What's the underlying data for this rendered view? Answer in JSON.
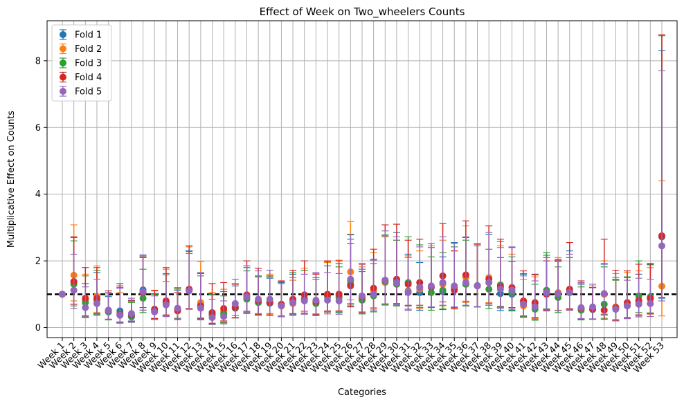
{
  "chart_data": {
    "type": "errorbar-scatter",
    "title": "Effect of Week on Two_wheelers Counts",
    "xlabel": "Categories",
    "ylabel": "Multiplicative Effect on Counts",
    "ylim": [
      -0.3,
      9.2
    ],
    "yticks": [
      0,
      2,
      4,
      6,
      8
    ],
    "grid": true,
    "legend_position": "top-left",
    "reference_line": {
      "y": 1.0,
      "style": "dashed",
      "color": "#000000"
    },
    "categories": [
      "Week 1",
      "Week 2",
      "Week 3",
      "Week 4",
      "Week 5",
      "Week 6",
      "Week 7",
      "Week 8",
      "Week 9",
      "Week 10",
      "Week 11",
      "Week 12",
      "Week 13",
      "Week 14",
      "Week 15",
      "Week 16",
      "Week 17",
      "Week 18",
      "Week 19",
      "Week 20",
      "Week 21",
      "Week 22",
      "Week 23",
      "Week 24",
      "Week 25",
      "Week 26",
      "Week 27",
      "Week 28",
      "Week 29",
      "Week 30",
      "Week 31",
      "Week 32",
      "Week 33",
      "Week 34",
      "Week 35",
      "Week 36",
      "Week 37",
      "Week 38",
      "Week 39",
      "Week 40",
      "Week 41",
      "Week 42",
      "Week 43",
      "Week 44",
      "Week 45",
      "Week 46",
      "Week 47",
      "Week 48",
      "Week 49",
      "Week 50",
      "Week 51",
      "Week 52",
      "Week 53"
    ],
    "series": [
      {
        "name": "Fold 1",
        "color": "#1f77b4",
        "values": [
          1.0,
          1.38,
          0.82,
          0.83,
          0.47,
          0.5,
          0.32,
          1.13,
          0.52,
          0.75,
          0.55,
          1.14,
          0.7,
          0.4,
          0.46,
          0.58,
          0.9,
          0.77,
          0.73,
          0.66,
          0.8,
          0.85,
          0.75,
          0.92,
          0.95,
          1.3,
          0.85,
          1.0,
          1.38,
          1.4,
          1.1,
          1.05,
          1.2,
          1.08,
          1.22,
          1.3,
          1.26,
          1.35,
          1.02,
          1.0,
          0.78,
          0.72,
          1.08,
          1.02,
          1.08,
          0.55,
          0.54,
          1.0,
          0.57,
          0.68,
          0.78,
          0.9,
          2.72
        ],
        "lower": [
          1.0,
          0.7,
          0.32,
          0.4,
          0.24,
          0.17,
          0.16,
          0.6,
          0.26,
          0.35,
          0.27,
          0.57,
          0.27,
          0.12,
          0.15,
          0.29,
          0.45,
          0.38,
          0.37,
          0.33,
          0.4,
          0.43,
          0.37,
          0.46,
          0.47,
          0.65,
          0.42,
          0.5,
          0.68,
          0.7,
          0.55,
          0.52,
          0.6,
          0.54,
          0.61,
          0.65,
          0.63,
          0.67,
          0.51,
          0.5,
          0.33,
          0.29,
          0.54,
          0.51,
          0.54,
          0.25,
          0.26,
          0.4,
          0.22,
          0.28,
          0.38,
          0.43,
          0.88
        ],
        "upper": [
          1.0,
          2.7,
          1.32,
          1.65,
          0.93,
          1.32,
          0.8,
          2.15,
          1.02,
          1.58,
          1.12,
          2.3,
          1.65,
          0.98,
          1.08,
          1.25,
          1.8,
          1.55,
          1.48,
          1.35,
          1.6,
          1.72,
          1.5,
          1.85,
          1.92,
          2.65,
          1.75,
          2.05,
          2.75,
          2.85,
          2.2,
          1.95,
          2.4,
          2.12,
          2.55,
          2.7,
          2.45,
          2.8,
          2.1,
          1.98,
          1.6,
          1.58,
          2.17,
          1.98,
          2.3,
          1.3,
          1.2,
          1.9,
          1.45,
          1.5,
          1.6,
          1.9,
          8.3
        ]
      },
      {
        "name": "Fold 2",
        "color": "#ff7f0e",
        "values": [
          1.0,
          1.57,
          0.85,
          0.94,
          0.5,
          0.37,
          0.35,
          1.05,
          0.55,
          0.77,
          0.55,
          1.12,
          0.75,
          0.35,
          0.5,
          0.62,
          0.92,
          0.75,
          0.78,
          0.65,
          0.72,
          0.88,
          0.8,
          0.95,
          1.0,
          1.67,
          0.88,
          1.1,
          1.35,
          1.3,
          1.08,
          1.15,
          1.22,
          1.3,
          1.15,
          1.5,
          1.25,
          1.5,
          1.22,
          1.1,
          0.65,
          0.65,
          1.05,
          1.05,
          1.05,
          0.55,
          0.55,
          1.0,
          0.62,
          0.72,
          0.72,
          0.85,
          1.24
        ],
        "lower": [
          1.0,
          0.8,
          0.35,
          0.45,
          0.25,
          0.13,
          0.17,
          0.52,
          0.28,
          0.36,
          0.27,
          0.55,
          0.3,
          0.11,
          0.17,
          0.3,
          0.46,
          0.37,
          0.39,
          0.32,
          0.36,
          0.44,
          0.4,
          0.47,
          0.5,
          0.83,
          0.44,
          0.55,
          0.67,
          0.65,
          0.54,
          0.57,
          0.61,
          0.65,
          0.57,
          0.75,
          0.62,
          0.75,
          0.61,
          0.55,
          0.3,
          0.27,
          0.52,
          0.52,
          0.52,
          0.24,
          0.25,
          0.38,
          0.24,
          0.3,
          0.35,
          0.4,
          0.35
        ],
        "upper": [
          1.0,
          3.08,
          1.6,
          1.85,
          1.03,
          1.05,
          0.78,
          2.12,
          1.1,
          1.75,
          1.15,
          2.42,
          1.98,
          1.05,
          1.15,
          1.32,
          1.85,
          1.52,
          1.6,
          1.32,
          1.42,
          1.78,
          1.62,
          1.95,
          2.02,
          3.18,
          1.82,
          2.25,
          2.72,
          2.62,
          2.15,
          2.3,
          2.45,
          2.62,
          2.3,
          3.05,
          2.5,
          3.05,
          2.45,
          2.2,
          1.45,
          1.52,
          2.1,
          2.1,
          2.1,
          1.32,
          1.25,
          2.0,
          1.62,
          1.65,
          1.7,
          1.8,
          4.4
        ]
      },
      {
        "name": "Fold 3",
        "color": "#2ca02c",
        "values": [
          1.0,
          1.3,
          0.75,
          0.83,
          0.47,
          0.42,
          0.35,
          0.88,
          0.5,
          0.72,
          0.55,
          1.12,
          0.62,
          0.37,
          0.4,
          0.62,
          0.85,
          0.75,
          0.75,
          0.68,
          0.82,
          0.85,
          0.72,
          0.98,
          0.9,
          1.4,
          0.82,
          0.95,
          1.38,
          1.3,
          1.35,
          1.22,
          1.05,
          1.12,
          1.2,
          1.3,
          1.25,
          1.15,
          1.28,
          1.05,
          0.72,
          0.55,
          1.12,
          0.9,
          1.05,
          0.52,
          0.55,
          0.7,
          0.55,
          0.65,
          0.95,
          0.92,
          2.75
        ],
        "lower": [
          1.0,
          0.65,
          0.3,
          0.4,
          0.23,
          0.15,
          0.17,
          0.45,
          0.25,
          0.34,
          0.27,
          0.55,
          0.25,
          0.11,
          0.14,
          0.3,
          0.42,
          0.37,
          0.37,
          0.34,
          0.41,
          0.42,
          0.36,
          0.49,
          0.45,
          0.7,
          0.41,
          0.47,
          0.69,
          0.65,
          0.67,
          0.61,
          0.52,
          0.56,
          0.6,
          0.65,
          0.62,
          0.57,
          0.64,
          0.52,
          0.32,
          0.22,
          0.56,
          0.45,
          0.52,
          0.23,
          0.25,
          0.28,
          0.21,
          0.27,
          0.45,
          0.44,
          0.9
        ],
        "upper": [
          1.0,
          2.6,
          1.55,
          1.72,
          0.97,
          1.2,
          0.75,
          1.75,
          1.0,
          1.62,
          1.18,
          2.28,
          1.55,
          1.0,
          0.95,
          1.3,
          1.7,
          1.52,
          1.52,
          1.38,
          1.65,
          1.72,
          1.45,
          1.98,
          1.82,
          2.8,
          1.68,
          1.92,
          2.78,
          2.62,
          2.72,
          2.48,
          2.12,
          2.25,
          2.42,
          2.62,
          2.52,
          2.35,
          2.58,
          2.12,
          1.62,
          1.3,
          2.25,
          1.82,
          2.1,
          1.22,
          1.2,
          1.82,
          1.42,
          1.52,
          2.0,
          1.88,
          8.75
        ]
      },
      {
        "name": "Fold 4",
        "color": "#d62728",
        "values": [
          1.0,
          1.38,
          0.88,
          0.88,
          0.52,
          0.4,
          0.38,
          1.05,
          0.55,
          0.8,
          0.5,
          1.15,
          0.65,
          0.45,
          0.57,
          0.6,
          0.98,
          0.8,
          0.75,
          0.7,
          0.85,
          0.98,
          0.78,
          1.0,
          1.0,
          1.25,
          0.92,
          1.18,
          1.42,
          1.45,
          1.3,
          1.35,
          1.22,
          1.55,
          1.12,
          1.58,
          1.25,
          1.45,
          1.22,
          1.2,
          0.8,
          0.75,
          1.0,
          1.02,
          1.15,
          0.58,
          0.55,
          0.52,
          0.6,
          0.75,
          0.82,
          0.88,
          2.75
        ],
        "lower": [
          1.0,
          0.7,
          0.35,
          0.42,
          0.25,
          0.14,
          0.18,
          0.52,
          0.27,
          0.38,
          0.24,
          0.57,
          0.26,
          0.13,
          0.2,
          0.29,
          0.49,
          0.4,
          0.37,
          0.35,
          0.42,
          0.49,
          0.39,
          0.5,
          0.5,
          0.62,
          0.46,
          0.59,
          0.71,
          0.72,
          0.65,
          0.67,
          0.61,
          0.77,
          0.56,
          0.79,
          0.62,
          0.72,
          0.61,
          0.6,
          0.35,
          0.3,
          0.5,
          0.51,
          0.57,
          0.26,
          0.25,
          0.25,
          0.22,
          0.3,
          0.38,
          0.42,
          0.9
        ],
        "upper": [
          1.0,
          2.72,
          1.8,
          1.8,
          1.1,
          1.25,
          0.82,
          2.1,
          1.12,
          1.8,
          1.05,
          2.45,
          1.62,
          1.32,
          1.35,
          1.3,
          2.0,
          1.78,
          1.55,
          1.4,
          1.72,
          2.0,
          1.6,
          2.0,
          2.0,
          2.52,
          1.9,
          2.35,
          3.08,
          3.1,
          2.62,
          2.65,
          2.52,
          3.12,
          2.3,
          3.2,
          2.5,
          3.05,
          2.65,
          2.4,
          1.7,
          1.6,
          2.0,
          2.02,
          2.55,
          1.4,
          1.2,
          2.65,
          1.72,
          1.7,
          1.9,
          1.92,
          8.78
        ]
      },
      {
        "name": "Fold 5",
        "color": "#9467bd",
        "values": [
          1.0,
          1.12,
          0.6,
          0.72,
          0.52,
          0.37,
          0.42,
          1.08,
          0.47,
          0.68,
          0.58,
          1.1,
          0.58,
          0.3,
          0.33,
          0.72,
          0.92,
          0.85,
          0.85,
          0.65,
          0.75,
          0.8,
          0.82,
          0.82,
          0.8,
          1.45,
          0.95,
          1.0,
          1.42,
          1.35,
          1.05,
          1.2,
          1.25,
          1.35,
          1.25,
          1.35,
          1.25,
          1.35,
          1.15,
          1.12,
          0.7,
          0.62,
          1.05,
          1.02,
          1.05,
          0.6,
          0.62,
          1.02,
          0.55,
          0.65,
          0.7,
          0.72,
          2.45
        ],
        "lower": [
          1.0,
          0.57,
          0.3,
          0.36,
          0.25,
          0.15,
          0.2,
          0.52,
          0.24,
          0.33,
          0.28,
          0.55,
          0.23,
          0.09,
          0.11,
          0.36,
          0.46,
          0.42,
          0.42,
          0.33,
          0.38,
          0.4,
          0.41,
          0.41,
          0.4,
          0.72,
          0.47,
          0.5,
          0.71,
          0.67,
          0.52,
          0.6,
          0.62,
          0.67,
          0.62,
          0.67,
          0.62,
          0.67,
          0.57,
          0.56,
          0.31,
          0.25,
          0.52,
          0.51,
          0.52,
          0.27,
          0.26,
          0.37,
          0.2,
          0.27,
          0.32,
          0.33,
          0.8
        ],
        "upper": [
          1.0,
          2.2,
          1.22,
          1.45,
          1.05,
          1.18,
          0.88,
          2.18,
          0.95,
          1.38,
          1.2,
          2.22,
          1.65,
          0.85,
          0.8,
          1.45,
          1.85,
          1.7,
          1.72,
          1.32,
          1.5,
          1.6,
          1.65,
          1.65,
          1.62,
          2.78,
          1.92,
          2.02,
          2.9,
          2.72,
          2.1,
          2.42,
          2.52,
          2.72,
          2.52,
          2.72,
          2.52,
          2.85,
          2.4,
          2.42,
          1.55,
          1.4,
          2.1,
          2.05,
          2.2,
          1.35,
          1.3,
          1.92,
          1.5,
          1.42,
          1.48,
          1.45,
          7.7
        ]
      }
    ]
  }
}
